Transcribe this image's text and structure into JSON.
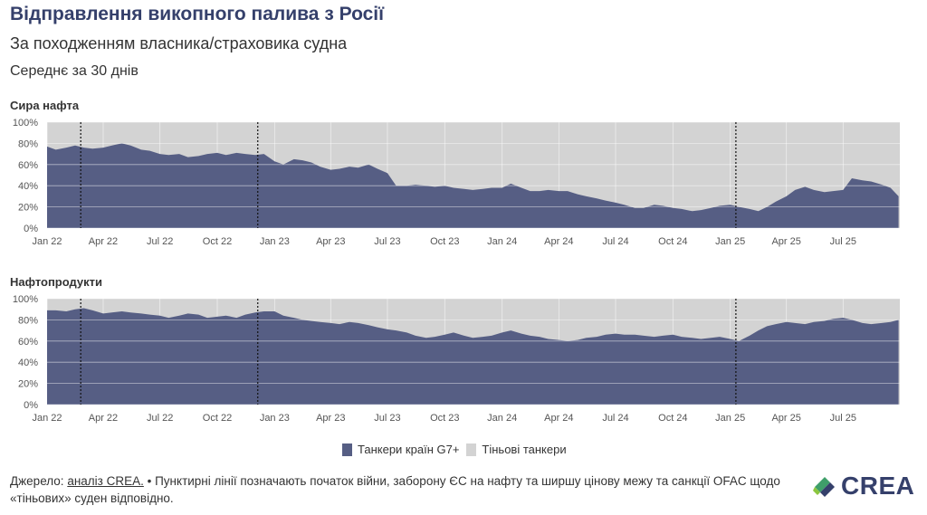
{
  "header": {
    "title": "Відправлення викопного палива з Росії",
    "subtitle": "За походженням власника/страховика судна",
    "period": "Середнє за 30 днів"
  },
  "colors": {
    "g7": "#565e84",
    "shadow": "#d3d3d3",
    "title": "#35406b"
  },
  "legend": {
    "g7_label": "Танкери країн G7+",
    "shadow_label": "Тіньові танкери"
  },
  "footer": {
    "source_label": "Джерело:",
    "source_link": "аналіз CREA.",
    "note": "• Пунктирні лінії позначають початок війни, заборону ЄС на нафту та ширшу цінову межу та санкції OFAC щодо «тіньових» суден відповідно."
  },
  "logo": {
    "text": "CREA",
    "icon": "crea-leaf-logo-icon"
  },
  "chart_data": [
    {
      "type": "area",
      "title": "Сира нафта",
      "x_range": [
        "2022-01-01",
        "2025-09-30"
      ],
      "ylim": [
        0,
        100
      ],
      "y_ticks": [
        0,
        20,
        40,
        60,
        80,
        100
      ],
      "y_tick_labels": [
        "0%",
        "20%",
        "40%",
        "60%",
        "80%",
        "100%"
      ],
      "x_ticks": [
        "2022-01-01",
        "2022-04-01",
        "2022-07-01",
        "2022-10-01",
        "2023-01-01",
        "2023-04-01",
        "2023-07-01",
        "2023-10-01",
        "2024-01-01",
        "2024-04-01",
        "2024-07-01",
        "2024-10-01",
        "2025-01-01",
        "2025-04-01",
        "2025-07-01"
      ],
      "x_tick_labels": [
        "Jan 22",
        "Apr 22",
        "Jul 22",
        "Oct 22",
        "Jan 23",
        "Apr 23",
        "Jul 23",
        "Oct 23",
        "Jan 24",
        "Apr 24",
        "Jul 24",
        "Oct 24",
        "Jan 25",
        "Apr 25",
        "Jul 25"
      ],
      "event_lines": [
        "2022-02-24",
        "2022-12-05",
        "2025-01-10"
      ],
      "series": [
        {
          "name": "Танкери країн G7+",
          "x": [
            "2022-01-01",
            "2022-01-15",
            "2022-02-01",
            "2022-02-15",
            "2022-03-01",
            "2022-03-15",
            "2022-04-01",
            "2022-04-15",
            "2022-05-01",
            "2022-05-15",
            "2022-06-01",
            "2022-06-15",
            "2022-07-01",
            "2022-07-15",
            "2022-08-01",
            "2022-08-15",
            "2022-09-01",
            "2022-09-15",
            "2022-10-01",
            "2022-10-15",
            "2022-11-01",
            "2022-11-15",
            "2022-12-01",
            "2022-12-15",
            "2023-01-01",
            "2023-01-15",
            "2023-02-01",
            "2023-02-15",
            "2023-03-01",
            "2023-03-15",
            "2023-04-01",
            "2023-04-15",
            "2023-05-01",
            "2023-05-15",
            "2023-06-01",
            "2023-06-15",
            "2023-07-01",
            "2023-07-15",
            "2023-08-01",
            "2023-08-15",
            "2023-09-01",
            "2023-09-15",
            "2023-10-01",
            "2023-10-15",
            "2023-11-01",
            "2023-11-15",
            "2023-12-01",
            "2023-12-15",
            "2024-01-01",
            "2024-01-15",
            "2024-02-01",
            "2024-02-15",
            "2024-03-01",
            "2024-03-15",
            "2024-04-01",
            "2024-04-15",
            "2024-05-01",
            "2024-05-15",
            "2024-06-01",
            "2024-06-15",
            "2024-07-01",
            "2024-07-15",
            "2024-08-01",
            "2024-08-15",
            "2024-09-01",
            "2024-09-15",
            "2024-10-01",
            "2024-10-15",
            "2024-11-01",
            "2024-11-15",
            "2024-12-01",
            "2024-12-15",
            "2025-01-01",
            "2025-01-15",
            "2025-02-01",
            "2025-02-15",
            "2025-03-01",
            "2025-03-15",
            "2025-04-01",
            "2025-04-15",
            "2025-05-01",
            "2025-05-15",
            "2025-06-01",
            "2025-06-15",
            "2025-07-01",
            "2025-07-15",
            "2025-08-01",
            "2025-08-15",
            "2025-09-01",
            "2025-09-15",
            "2025-09-28"
          ],
          "values": [
            77,
            74,
            76,
            78,
            76,
            75,
            76,
            78,
            80,
            78,
            74,
            73,
            70,
            69,
            70,
            67,
            68,
            70,
            71,
            69,
            71,
            70,
            69,
            70,
            63,
            60,
            65,
            64,
            62,
            58,
            55,
            56,
            58,
            57,
            60,
            56,
            52,
            40,
            40,
            41,
            40,
            39,
            40,
            38,
            37,
            36,
            37,
            38,
            38,
            42,
            38,
            35,
            35,
            36,
            35,
            35,
            32,
            30,
            28,
            26,
            24,
            22,
            19,
            19,
            22,
            21,
            19,
            18,
            16,
            17,
            19,
            21,
            22,
            20,
            18,
            16,
            20,
            25,
            30,
            36,
            39,
            36,
            34,
            35,
            36,
            47,
            45,
            44,
            41,
            38,
            30
          ]
        },
        {
          "name": "Тіньові танкери",
          "fill_to": 100
        }
      ]
    },
    {
      "type": "area",
      "title": "Нафтопродукти",
      "x_range": [
        "2022-01-01",
        "2025-09-30"
      ],
      "ylim": [
        0,
        100
      ],
      "y_ticks": [
        0,
        20,
        40,
        60,
        80,
        100
      ],
      "y_tick_labels": [
        "0%",
        "20%",
        "40%",
        "60%",
        "80%",
        "100%"
      ],
      "x_ticks": [
        "2022-01-01",
        "2022-04-01",
        "2022-07-01",
        "2022-10-01",
        "2023-01-01",
        "2023-04-01",
        "2023-07-01",
        "2023-10-01",
        "2024-01-01",
        "2024-04-01",
        "2024-07-01",
        "2024-10-01",
        "2025-01-01",
        "2025-04-01",
        "2025-07-01"
      ],
      "x_tick_labels": [
        "Jan 22",
        "Apr 22",
        "Jul 22",
        "Oct 22",
        "Jan 23",
        "Apr 23",
        "Jul 23",
        "Oct 23",
        "Jan 24",
        "Apr 24",
        "Jul 24",
        "Oct 24",
        "Jan 25",
        "Apr 25",
        "Jul 25"
      ],
      "event_lines": [
        "2022-02-24",
        "2022-12-05",
        "2025-01-10"
      ],
      "series": [
        {
          "name": "Танкери країн G7+",
          "x": [
            "2022-01-01",
            "2022-01-15",
            "2022-02-01",
            "2022-02-15",
            "2022-03-01",
            "2022-03-15",
            "2022-04-01",
            "2022-04-15",
            "2022-05-01",
            "2022-05-15",
            "2022-06-01",
            "2022-06-15",
            "2022-07-01",
            "2022-07-15",
            "2022-08-01",
            "2022-08-15",
            "2022-09-01",
            "2022-09-15",
            "2022-10-01",
            "2022-10-15",
            "2022-11-01",
            "2022-11-15",
            "2022-12-01",
            "2022-12-15",
            "2023-01-01",
            "2023-01-15",
            "2023-02-01",
            "2023-02-15",
            "2023-03-01",
            "2023-03-15",
            "2023-04-01",
            "2023-04-15",
            "2023-05-01",
            "2023-05-15",
            "2023-06-01",
            "2023-06-15",
            "2023-07-01",
            "2023-07-15",
            "2023-08-01",
            "2023-08-15",
            "2023-09-01",
            "2023-09-15",
            "2023-10-01",
            "2023-10-15",
            "2023-11-01",
            "2023-11-15",
            "2023-12-01",
            "2023-12-15",
            "2024-01-01",
            "2024-01-15",
            "2024-02-01",
            "2024-02-15",
            "2024-03-01",
            "2024-03-15",
            "2024-04-01",
            "2024-04-15",
            "2024-05-01",
            "2024-05-15",
            "2024-06-01",
            "2024-06-15",
            "2024-07-01",
            "2024-07-15",
            "2024-08-01",
            "2024-08-15",
            "2024-09-01",
            "2024-09-15",
            "2024-10-01",
            "2024-10-15",
            "2024-11-01",
            "2024-11-15",
            "2024-12-01",
            "2024-12-15",
            "2025-01-01",
            "2025-01-15",
            "2025-02-01",
            "2025-02-15",
            "2025-03-01",
            "2025-03-15",
            "2025-04-01",
            "2025-04-15",
            "2025-05-01",
            "2025-05-15",
            "2025-06-01",
            "2025-06-15",
            "2025-07-01",
            "2025-07-15",
            "2025-08-01",
            "2025-08-15",
            "2025-09-01",
            "2025-09-15",
            "2025-09-28"
          ],
          "values": [
            89,
            89,
            88,
            90,
            91,
            89,
            86,
            87,
            88,
            87,
            86,
            85,
            84,
            82,
            84,
            86,
            85,
            82,
            83,
            84,
            82,
            85,
            87,
            88,
            88,
            84,
            82,
            80,
            79,
            78,
            77,
            76,
            78,
            77,
            75,
            73,
            71,
            70,
            68,
            65,
            63,
            64,
            66,
            68,
            65,
            63,
            64,
            65,
            68,
            70,
            67,
            65,
            64,
            62,
            61,
            60,
            61,
            63,
            64,
            66,
            67,
            66,
            66,
            65,
            64,
            65,
            66,
            64,
            63,
            62,
            63,
            64,
            62,
            60,
            65,
            70,
            74,
            76,
            78,
            77,
            76,
            78,
            79,
            81,
            82,
            80,
            77,
            76,
            77,
            78,
            80
          ]
        },
        {
          "name": "Тіньові танкери",
          "fill_to": 100
        }
      ]
    }
  ]
}
